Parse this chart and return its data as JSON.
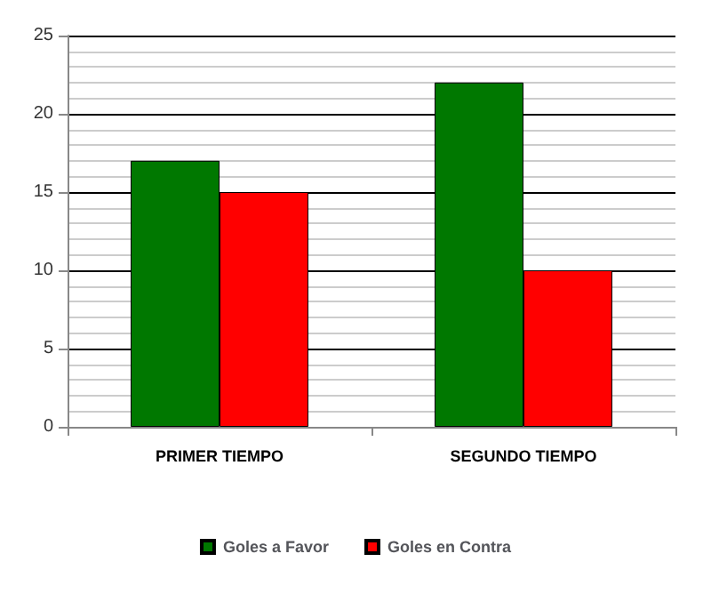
{
  "chart_data": {
    "type": "bar",
    "categories": [
      "PRIMER TIEMPO",
      "SEGUNDO TIEMPO"
    ],
    "series": [
      {
        "name": "Goles a Favor",
        "color": "#007800",
        "values": [
          17,
          22
        ]
      },
      {
        "name": "Goles en Contra",
        "color": "#ff0000",
        "values": [
          15,
          10
        ]
      }
    ],
    "ylim": [
      0,
      25
    ],
    "yticks": [
      0,
      5,
      10,
      15,
      20,
      25
    ],
    "grid": true,
    "legend": "bottom"
  }
}
